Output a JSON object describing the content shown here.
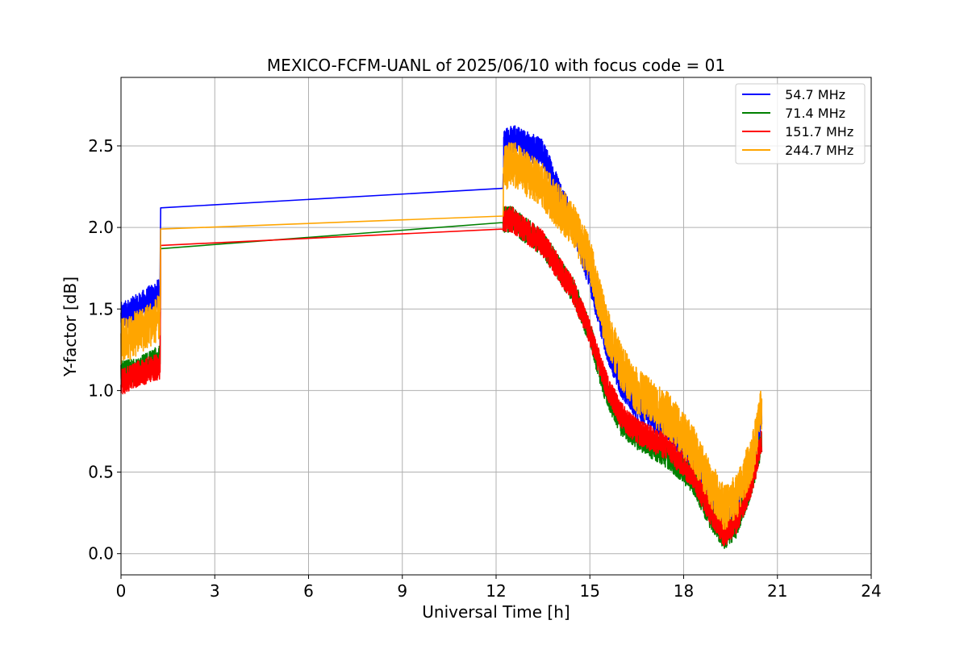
{
  "chart_data": {
    "type": "line",
    "title": "MEXICO-FCFM-UANL of 2025/06/10 with focus code = 01",
    "xlabel": "Universal Time [h]",
    "ylabel": "Y-factor [dB]",
    "xlim": [
      0,
      24
    ],
    "ylim": [
      -0.13,
      2.92
    ],
    "xticks": [
      0,
      3,
      6,
      9,
      12,
      15,
      18,
      21,
      24
    ],
    "yticks": [
      0.0,
      0.5,
      1.0,
      1.5,
      2.0,
      2.5
    ],
    "xtick_labels": [
      "0",
      "3",
      "6",
      "9",
      "12",
      "15",
      "18",
      "21",
      "24"
    ],
    "ytick_labels": [
      "0.0",
      "0.5",
      "1.0",
      "1.5",
      "2.0",
      "2.5"
    ],
    "grid": true,
    "legend_position": "top-right",
    "series": [
      {
        "name": " 54.7 MHz",
        "color": "#0000ff",
        "noise": 0.09,
        "points": [
          [
            0,
            1.45
          ],
          [
            0.5,
            1.5
          ],
          [
            1.25,
            1.6
          ],
          [
            1.27,
            2.12
          ],
          [
            12.22,
            2.24
          ],
          [
            12.25,
            2.5
          ],
          [
            12.5,
            2.55
          ],
          [
            13.5,
            2.45
          ],
          [
            14.5,
            2.0
          ],
          [
            15,
            1.7
          ],
          [
            15.5,
            1.3
          ],
          [
            16,
            1.05
          ],
          [
            16.5,
            0.9
          ],
          [
            17.5,
            0.78
          ],
          [
            18.3,
            0.55
          ],
          [
            18.8,
            0.35
          ],
          [
            19.3,
            0.15
          ],
          [
            19.7,
            0.25
          ],
          [
            20.2,
            0.55
          ],
          [
            20.5,
            0.85
          ]
        ]
      },
      {
        "name": " 71.4 MHz",
        "color": "#008000",
        "noise": 0.08,
        "points": [
          [
            0,
            1.1
          ],
          [
            0.5,
            1.12
          ],
          [
            1.25,
            1.2
          ],
          [
            1.27,
            1.87
          ],
          [
            12.22,
            2.03
          ],
          [
            12.25,
            2.05
          ],
          [
            12.5,
            2.05
          ],
          [
            13.5,
            1.9
          ],
          [
            14.5,
            1.6
          ],
          [
            15,
            1.35
          ],
          [
            15.5,
            1.0
          ],
          [
            16,
            0.8
          ],
          [
            16.5,
            0.72
          ],
          [
            17.5,
            0.6
          ],
          [
            18.3,
            0.45
          ],
          [
            18.8,
            0.25
          ],
          [
            19.3,
            0.1
          ],
          [
            19.7,
            0.18
          ],
          [
            20.2,
            0.45
          ],
          [
            20.5,
            0.7
          ]
        ]
      },
      {
        "name": " 151.7 MHz",
        "color": "#ff0000",
        "noise": 0.08,
        "points": [
          [
            0,
            1.05
          ],
          [
            0.5,
            1.1
          ],
          [
            1.25,
            1.15
          ],
          [
            1.27,
            1.89
          ],
          [
            12.22,
            1.99
          ],
          [
            12.25,
            2.05
          ],
          [
            12.5,
            2.05
          ],
          [
            13.5,
            1.9
          ],
          [
            14.5,
            1.6
          ],
          [
            15,
            1.35
          ],
          [
            15.5,
            1.05
          ],
          [
            16,
            0.85
          ],
          [
            16.5,
            0.75
          ],
          [
            17.5,
            0.65
          ],
          [
            18.3,
            0.48
          ],
          [
            18.8,
            0.28
          ],
          [
            19.3,
            0.12
          ],
          [
            19.7,
            0.2
          ],
          [
            20.2,
            0.45
          ],
          [
            20.5,
            0.7
          ]
        ]
      },
      {
        "name": " 244.7 MHz",
        "color": "#ffa500",
        "noise": 0.14,
        "points": [
          [
            0,
            1.3
          ],
          [
            0.5,
            1.35
          ],
          [
            1.25,
            1.45
          ],
          [
            1.27,
            1.99
          ],
          [
            12.22,
            2.07
          ],
          [
            12.25,
            2.35
          ],
          [
            12.5,
            2.4
          ],
          [
            13.5,
            2.25
          ],
          [
            14.5,
            2.0
          ],
          [
            15,
            1.8
          ],
          [
            15.5,
            1.4
          ],
          [
            16,
            1.15
          ],
          [
            16.5,
            1.0
          ],
          [
            17.5,
            0.85
          ],
          [
            18.3,
            0.65
          ],
          [
            18.8,
            0.45
          ],
          [
            19.3,
            0.28
          ],
          [
            19.7,
            0.35
          ],
          [
            20.2,
            0.6
          ],
          [
            20.5,
            0.9
          ]
        ]
      }
    ]
  }
}
